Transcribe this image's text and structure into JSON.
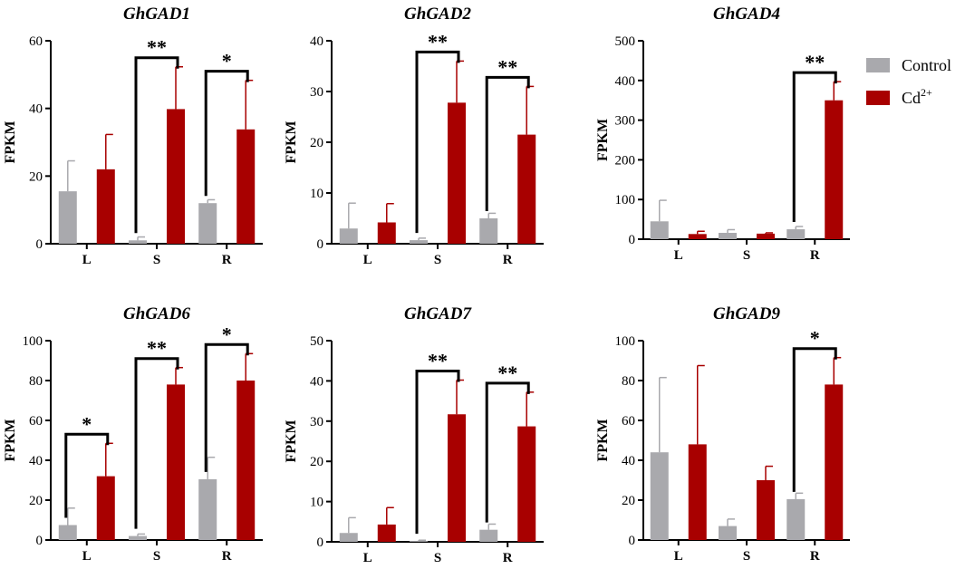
{
  "colors": {
    "control": "#a9a9ad",
    "cd": "#a80000",
    "axis": "#000000"
  },
  "legend": [
    {
      "name": "Control",
      "label": "Control"
    },
    {
      "name": "Cd",
      "label": "Cd",
      "sup": "2+"
    }
  ],
  "chart_data": [
    {
      "type": "bar",
      "title": "GhGAD1",
      "ylabel": "FPKM",
      "categories": [
        "L",
        "S",
        "R"
      ],
      "ylim": [
        0,
        60
      ],
      "yticks": [
        "0",
        "20",
        "40",
        "60"
      ],
      "series": [
        {
          "name": "Control",
          "values": [
            15.5,
            1.0,
            12.0
          ],
          "errors": [
            9.0,
            1.0,
            1.0
          ]
        },
        {
          "name": "Cd2+",
          "values": [
            22.0,
            39.8,
            33.8
          ],
          "errors": [
            10.3,
            12.5,
            14.5
          ]
        }
      ],
      "significance": [
        null,
        "**",
        "*"
      ]
    },
    {
      "type": "bar",
      "title": "GhGAD2",
      "ylabel": "FPKM",
      "categories": [
        "L",
        "S",
        "R"
      ],
      "ylim": [
        0,
        40
      ],
      "yticks": [
        "0",
        "10",
        "20",
        "30",
        "40"
      ],
      "series": [
        {
          "name": "Control",
          "values": [
            3.0,
            0.7,
            5.0
          ],
          "errors": [
            5.0,
            0.4,
            1.0
          ]
        },
        {
          "name": "Cd2+",
          "values": [
            4.2,
            27.8,
            21.5
          ],
          "errors": [
            3.7,
            8.2,
            9.5
          ]
        }
      ],
      "significance": [
        null,
        "**",
        "**"
      ]
    },
    {
      "type": "bar",
      "title": "GhGAD4",
      "ylabel": "FPKM",
      "categories": [
        "L",
        "S",
        "R"
      ],
      "ylim": [
        0,
        500
      ],
      "yticks": [
        "0",
        "100",
        "200",
        "300",
        "400",
        "500"
      ],
      "series": [
        {
          "name": "Control",
          "values": [
            45,
            16,
            25
          ],
          "errors": [
            53,
            8,
            7
          ]
        },
        {
          "name": "Cd2+",
          "values": [
            13,
            14,
            350
          ],
          "errors": [
            7,
            2,
            47
          ]
        }
      ],
      "significance": [
        null,
        null,
        "**"
      ]
    },
    {
      "type": "bar",
      "title": "GhGAD6",
      "ylabel": "FPKM",
      "categories": [
        "L",
        "S",
        "R"
      ],
      "ylim": [
        0,
        100
      ],
      "yticks": [
        "0",
        "20",
        "40",
        "60",
        "80",
        "100"
      ],
      "series": [
        {
          "name": "Control",
          "values": [
            7.5,
            2.0,
            30.5
          ],
          "errors": [
            8.5,
            1.0,
            11.0
          ]
        },
        {
          "name": "Cd2+",
          "values": [
            32.0,
            78.0,
            80.0
          ],
          "errors": [
            16.5,
            8.5,
            13.5
          ]
        }
      ],
      "significance": [
        "*",
        "**",
        "*"
      ]
    },
    {
      "type": "bar",
      "title": "GhGAD7",
      "ylabel": "FPKM",
      "categories": [
        "L",
        "S",
        "R"
      ],
      "ylim": [
        0,
        50
      ],
      "yticks": [
        "0",
        "10",
        "20",
        "30",
        "40",
        "50"
      ],
      "series": [
        {
          "name": "Control",
          "values": [
            2.2,
            0.2,
            3.0
          ],
          "errors": [
            3.8,
            0.2,
            1.4
          ]
        },
        {
          "name": "Cd2+",
          "values": [
            4.3,
            31.7,
            28.7
          ],
          "errors": [
            4.2,
            8.5,
            8.5
          ]
        }
      ],
      "significance": [
        null,
        "**",
        "**"
      ]
    },
    {
      "type": "bar",
      "title": "GhGAD9",
      "ylabel": "FPKM",
      "categories": [
        "L",
        "S",
        "R"
      ],
      "ylim": [
        0,
        100
      ],
      "yticks": [
        "0",
        "20",
        "40",
        "60",
        "80",
        "100"
      ],
      "series": [
        {
          "name": "Control",
          "values": [
            44.0,
            7.0,
            20.5
          ],
          "errors": [
            37.5,
            3.5,
            3.0
          ]
        },
        {
          "name": "Cd2+",
          "values": [
            48.0,
            30.0,
            78.0
          ],
          "errors": [
            39.5,
            7.0,
            13.5
          ]
        }
      ],
      "significance": [
        null,
        null,
        "*"
      ]
    }
  ]
}
